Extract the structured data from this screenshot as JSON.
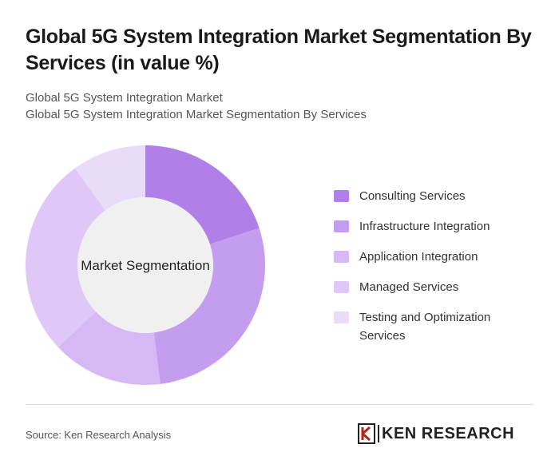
{
  "header": {
    "title": "Global 5G System Integration Market Segmentation By Services (in value %)",
    "subtitle_lines": [
      "Global 5G System Integration Market",
      "Global 5G System Integration Market Segmentation By Services"
    ]
  },
  "chart_data": {
    "type": "donut",
    "center_label": "Market Segmentation",
    "categories": [
      "Consulting Services",
      "Infrastructure Integration",
      "Application Integration",
      "Managed Services",
      "Testing and Optimization Services"
    ],
    "values": [
      20,
      28,
      15,
      27,
      10
    ],
    "colors": [
      "#b07fe8",
      "#c49cf0",
      "#d6b8f5",
      "#dfc8f7",
      "#e9dcf9"
    ]
  },
  "footer": {
    "source": "Source: Ken Research Analysis",
    "logo": "KEN RESEARCH"
  }
}
